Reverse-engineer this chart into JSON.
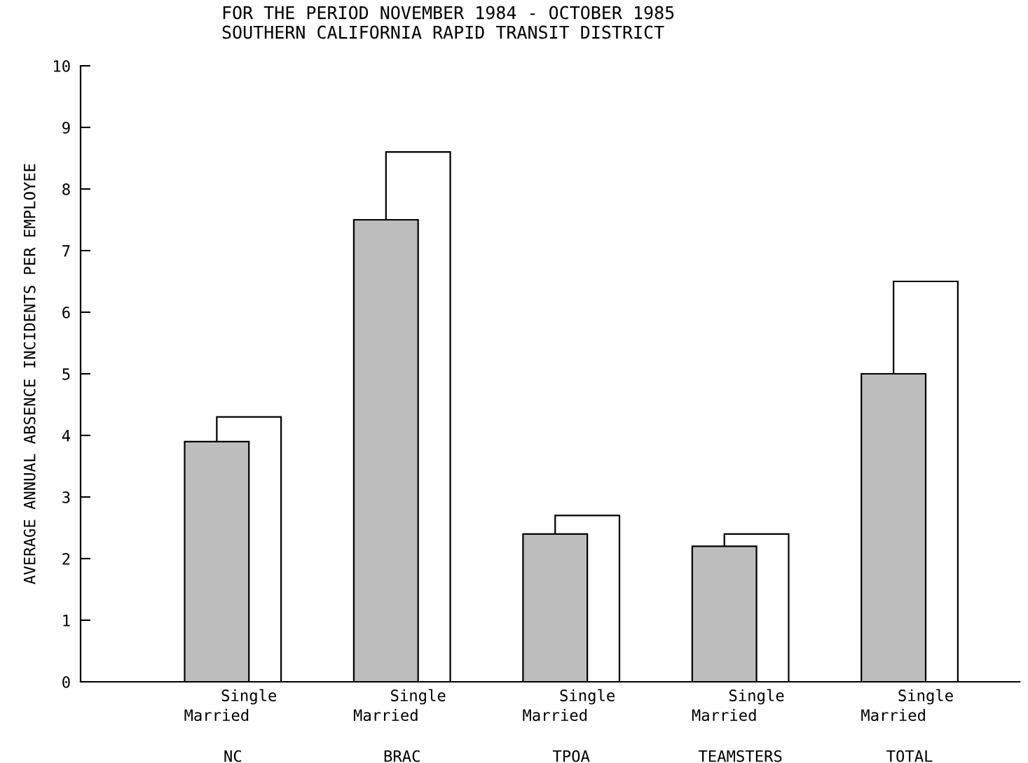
{
  "chart_data": {
    "type": "bar",
    "title": "FOR THE PERIOD NOVEMBER 1984 - OCTOBER 1985",
    "subtitle": "SOUTHERN CALIFORNIA RAPID TRANSIT DISTRICT",
    "ylabel": "AVERAGE ANNUAL ABSENCE INCIDENTS PER EMPLOYEE",
    "categories": [
      "NC",
      "BRAC",
      "TPOA",
      "TEAMSTERS",
      "TOTAL"
    ],
    "series": [
      {
        "name": "Married",
        "color": "#bdbdbd",
        "values": [
          3.9,
          7.5,
          2.4,
          2.2,
          5.0
        ]
      },
      {
        "name": "Single",
        "color": "#ffffff",
        "values": [
          4.3,
          8.6,
          2.7,
          2.4,
          6.5
        ]
      }
    ],
    "ylim": [
      0,
      10
    ],
    "yticks": [
      0,
      1,
      2,
      3,
      4,
      5,
      6,
      7,
      8,
      9,
      10
    ],
    "grid": false,
    "legend": false
  }
}
